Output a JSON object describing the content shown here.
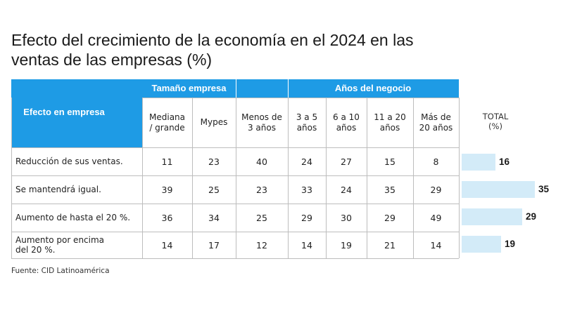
{
  "title": "Efecto del crecimiento de la economía en el 2024 en las ventas de las empresas (%)",
  "header": {
    "group_tamano": "Tamaño empresa",
    "group_anios": "Años del negocio",
    "efecto": "Efecto en empresa",
    "columns": [
      "Mediana\n/ grande",
      "Mypes",
      "Menos de\n3 años",
      "3 a 5\naños",
      "6 a 10\naños",
      "11 a 20\naños",
      "Más de\n20 años"
    ],
    "total": "TOTAL\n(%)"
  },
  "chart_data": {
    "type": "table",
    "title": "Efecto del crecimiento de la economía en el 2024 en las ventas de las empresas (%)",
    "rows": [
      {
        "label": "Reducción de sus ventas.",
        "values": [
          11,
          23,
          40,
          24,
          27,
          15,
          8
        ],
        "total": 16
      },
      {
        "label": "Se mantendrá igual.",
        "values": [
          39,
          25,
          23,
          33,
          24,
          35,
          29
        ],
        "total": 35
      },
      {
        "label": "Aumento de hasta el 20 %.",
        "values": [
          36,
          34,
          25,
          29,
          30,
          29,
          49
        ],
        "total": 29
      },
      {
        "label": "Aumento por encima\ndel 20 %.",
        "values": [
          14,
          17,
          12,
          14,
          19,
          21,
          14
        ],
        "total": 19
      }
    ],
    "total_max": 35
  },
  "colors": {
    "header": "#1e9be5",
    "bar": "#d3ebf8"
  },
  "source": "Fuente: CID Latinoamérica"
}
